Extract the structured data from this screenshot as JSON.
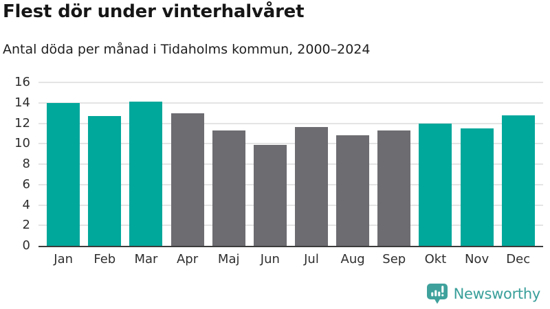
{
  "chart_data": {
    "type": "bar",
    "title": "Flest dör under vinterhalvåret",
    "subtitle": "Antal döda per månad i Tidaholms kommun, 2000–2024",
    "categories": [
      "Jan",
      "Feb",
      "Mar",
      "Apr",
      "Maj",
      "Jun",
      "Jul",
      "Aug",
      "Sep",
      "Okt",
      "Nov",
      "Dec"
    ],
    "values": [
      14.0,
      12.7,
      14.1,
      13.0,
      11.3,
      9.9,
      11.6,
      10.8,
      11.3,
      12.0,
      11.5,
      12.8
    ],
    "bar_colors": [
      "#00a79b",
      "#00a79b",
      "#00a79b",
      "#6c6c71",
      "#6c6c71",
      "#6c6c71",
      "#6c6c71",
      "#6c6c71",
      "#6c6c71",
      "#00a79b",
      "#00a79b",
      "#00a79b"
    ],
    "palette": {
      "winter_bar": "#00a79b",
      "summer_bar": "#6c6c71",
      "gridline": "#e4e4e4",
      "axis_line": "#3c3c3c"
    },
    "xlabel": "",
    "ylabel": "",
    "ylim": [
      0,
      16
    ],
    "yticks": [
      0,
      2,
      4,
      6,
      8,
      10,
      12,
      14,
      16
    ],
    "grid": true,
    "legend": false
  },
  "footer": {
    "logo_text": "Newsworthy",
    "logo_color": "#399f9a",
    "logo_icon": "newsworthy-speech-bubble-bar-chart"
  }
}
